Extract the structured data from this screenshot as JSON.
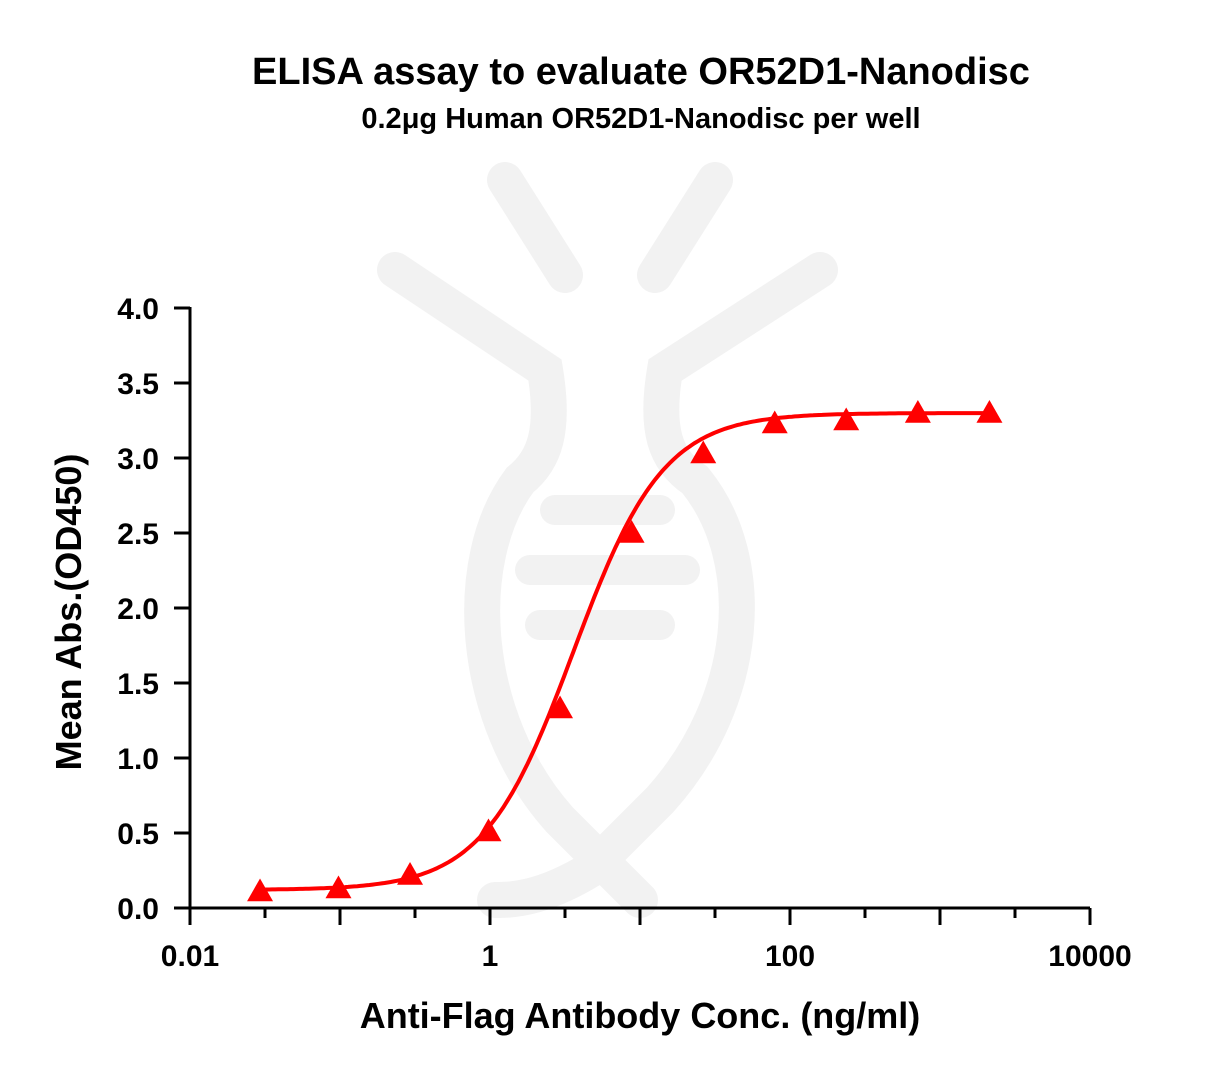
{
  "chart_data": {
    "type": "scatter",
    "title": "ELISA assay to evaluate OR52D1-Nanodisc",
    "subtitle": "0.2μg Human OR52D1-Nanodisc per well",
    "xlabel": "Anti-Flag Antibody Conc. (ng/ml)",
    "ylabel": "Mean Abs.(OD450)",
    "x_scale": "log",
    "xlim": [
      0.01,
      10000
    ],
    "ylim": [
      0,
      4.0
    ],
    "x_ticks": [
      0.01,
      1,
      100,
      10000
    ],
    "x_tick_labels": [
      "0.01",
      "1",
      "100",
      "10000"
    ],
    "y_ticks": [
      0,
      0.5,
      1.0,
      1.5,
      2.0,
      2.5,
      3.0,
      3.5,
      4.0
    ],
    "y_tick_labels": [
      "0.0",
      "0.5",
      "1.0",
      "1.5",
      "2.0",
      "2.5",
      "3.0",
      "3.5",
      "4.0"
    ],
    "marker": "triangle",
    "fit": "4PL sigmoid curve",
    "color": "#ff0000",
    "series": [
      {
        "x": [
          0.0293,
          0.0977,
          0.293,
          0.977,
          2.93,
          8.79,
          26.4,
          79.1,
          237,
          712,
          2136
        ],
        "y": [
          0.11,
          0.13,
          0.22,
          0.51,
          1.33,
          2.5,
          3.03,
          3.23,
          3.25,
          3.3,
          3.3
        ]
      }
    ]
  }
}
